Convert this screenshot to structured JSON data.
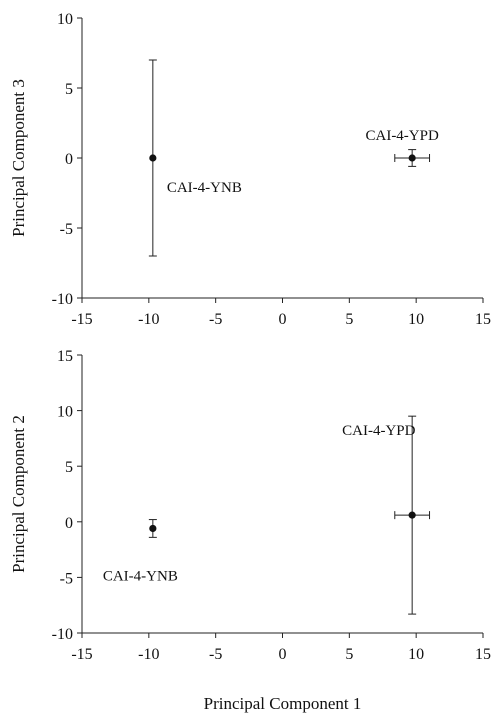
{
  "chart_data": [
    {
      "type": "scatter",
      "title": "",
      "xlabel": "",
      "ylabel": "Principal Component 3",
      "xlim": [
        -15,
        15
      ],
      "ylim": [
        -10,
        10
      ],
      "xticks": [
        -15,
        -10,
        -5,
        0,
        5,
        10,
        15
      ],
      "yticks": [
        10,
        5,
        0,
        -5,
        -10
      ],
      "ytick_labels": [
        "10",
        "5",
        "0",
        "-5",
        "-10"
      ],
      "grid": false,
      "points": [
        {
          "label": "CAI-4-YNB",
          "x": -9.7,
          "y": 0.0,
          "x_err": 0.0,
          "y_err": 7.0
        },
        {
          "label": "CAI-4-YPD",
          "x": 9.7,
          "y": 0.0,
          "x_err": 1.3,
          "y_err": 0.6
        }
      ]
    },
    {
      "type": "scatter",
      "title": "",
      "xlabel": "Principal Component 1",
      "ylabel": "Principal Component 2",
      "xlim": [
        -15,
        15
      ],
      "ylim": [
        -10,
        15
      ],
      "xticks": [
        -15,
        -10,
        -5,
        0,
        5,
        10,
        15
      ],
      "yticks": [
        15,
        10,
        5,
        0,
        -5,
        -10
      ],
      "ytick_labels": [
        "15",
        "10",
        "5",
        "0",
        "-5",
        "-10"
      ],
      "grid": false,
      "points": [
        {
          "label": "CAI-4-YNB",
          "x": -9.7,
          "y": -0.6,
          "x_err": 0.0,
          "y_err": 0.8
        },
        {
          "label": "CAI-4-YPD",
          "x": 9.7,
          "y": 0.6,
          "x_err": 1.3,
          "y_err": 8.9
        }
      ]
    }
  ]
}
